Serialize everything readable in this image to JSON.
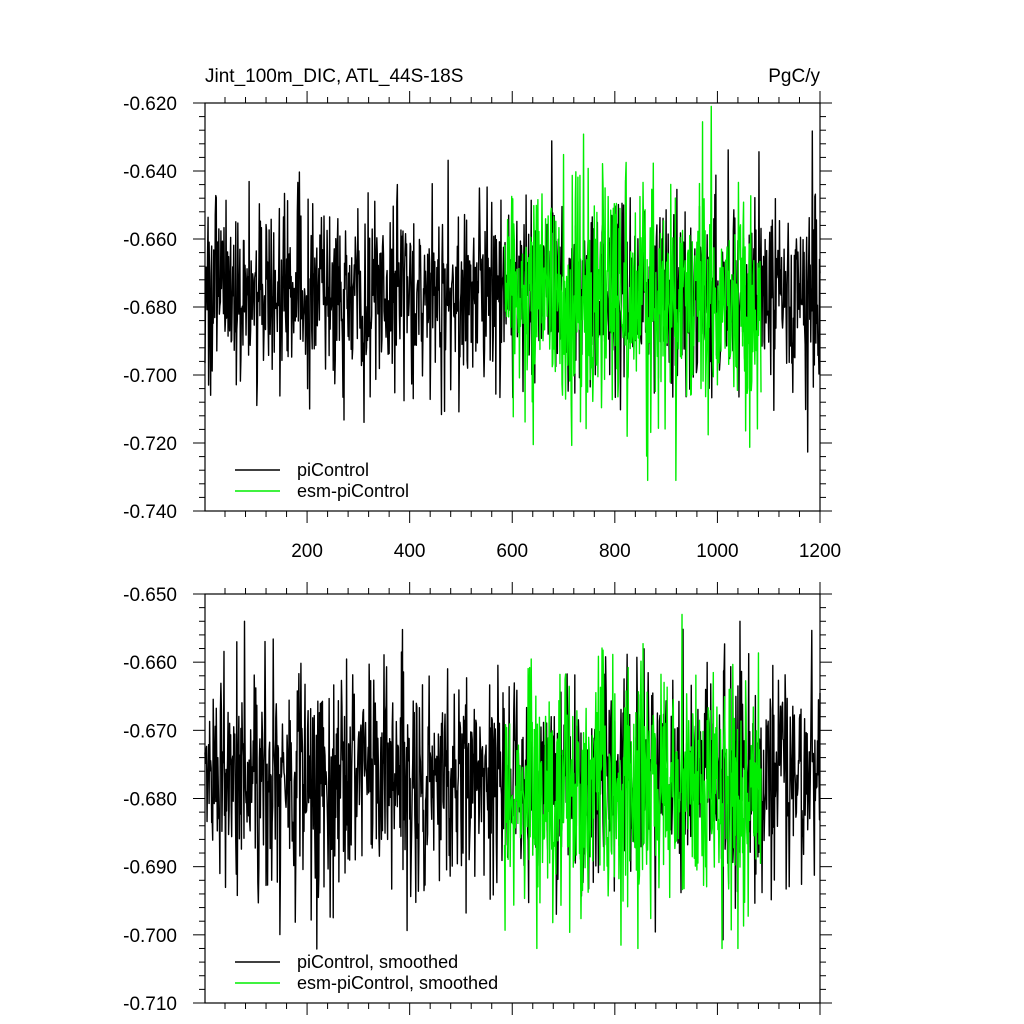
{
  "colors": {
    "piControl": "#000000",
    "esm_piControl": "#00ee00",
    "axis": "#000000",
    "background": "#ffffff"
  },
  "chart_data": [
    {
      "type": "line",
      "title": "Jint_100m_DIC, ATL_44S-18S",
      "units": "PgC/y",
      "xlabel": "",
      "ylabel": "",
      "xlim": [
        1,
        1200
      ],
      "ylim": [
        -0.74,
        -0.62
      ],
      "x_ticks": [
        200,
        400,
        600,
        800,
        1000,
        1200
      ],
      "x_tick_labels": [
        "200",
        "400",
        "600",
        "800",
        "1000",
        "1200"
      ],
      "y_ticks": [
        -0.62,
        -0.64,
        -0.66,
        -0.68,
        -0.7,
        -0.72,
        -0.74
      ],
      "y_tick_labels": [
        "-0.620",
        "-0.640",
        "-0.660",
        "-0.680",
        "-0.700",
        "-0.720",
        "-0.740"
      ],
      "grid": false,
      "legend_position": "bottom-left",
      "series": [
        {
          "name": "piControl",
          "color": "#000000",
          "x_range": [
            1,
            1200
          ],
          "mean": -0.676,
          "std": 0.014,
          "min": -0.728,
          "max": -0.621
        },
        {
          "name": "esm-piControl",
          "color": "#00ee00",
          "x_range": [
            585,
            1085
          ],
          "mean": -0.678,
          "std": 0.018,
          "min": -0.731,
          "max": -0.621
        }
      ]
    },
    {
      "type": "line",
      "title": "",
      "xlim": [
        1,
        1200
      ],
      "ylim": [
        -0.71,
        -0.65
      ],
      "x_ticks": [
        200,
        400,
        600,
        800,
        1000,
        1200
      ],
      "y_ticks": [
        -0.65,
        -0.66,
        -0.67,
        -0.68,
        -0.69,
        -0.7,
        -0.71
      ],
      "y_tick_labels": [
        "-0.650",
        "-0.660",
        "-0.670",
        "-0.680",
        "-0.690",
        "-0.700",
        "-0.710"
      ],
      "grid": false,
      "legend_position": "bottom-left",
      "series": [
        {
          "name": "piControl, smoothed",
          "color": "#000000",
          "x_range": [
            1,
            1200
          ],
          "mean": -0.677,
          "std": 0.008,
          "min": -0.703,
          "max": -0.654
        },
        {
          "name": "esm-piControl, smoothed",
          "color": "#00ee00",
          "x_range": [
            585,
            1085
          ],
          "mean": -0.679,
          "std": 0.009,
          "min": -0.702,
          "max": -0.653
        }
      ]
    }
  ]
}
